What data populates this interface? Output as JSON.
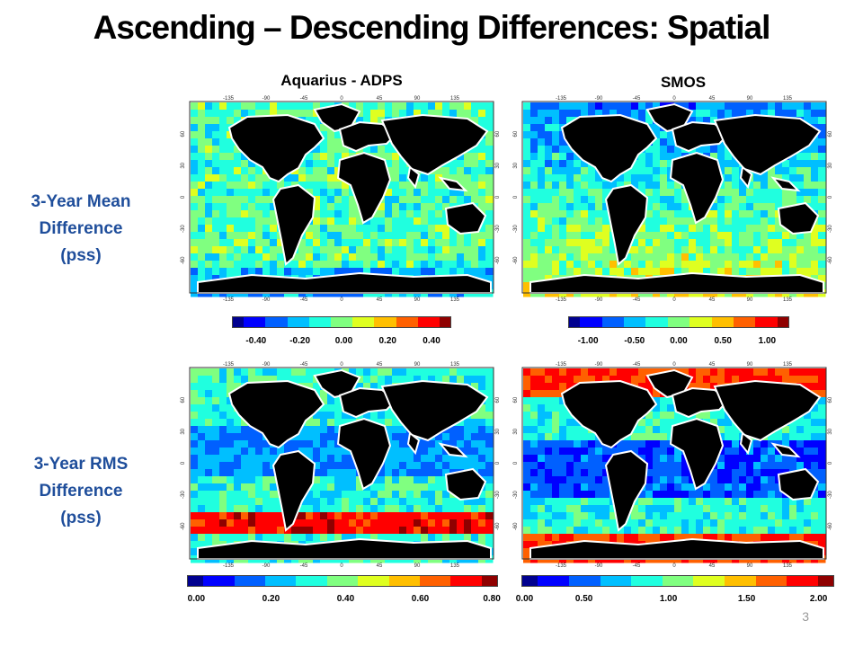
{
  "title": "Ascending – Descending Differences:  Spatial",
  "columns": [
    "Aquarius - ADPS",
    "SMOS"
  ],
  "rows": [
    {
      "label_lines": [
        "3-Year Mean",
        "Difference",
        "(pss)"
      ]
    },
    {
      "label_lines": [
        "3-Year RMS",
        "Difference",
        "(pss)"
      ]
    }
  ],
  "map_axis_labels": {
    "top": [
      "-135",
      "-90",
      "-45",
      "0",
      "45",
      "90",
      "135"
    ],
    "bottom": [
      "-135",
      "-90",
      "-45",
      "0",
      "45",
      "90",
      "135"
    ],
    "side": [
      "60",
      "30",
      "0",
      "-30",
      "-60"
    ]
  },
  "colorbars": [
    {
      "ticks": [
        "-0.40",
        "-0.20",
        "0.00",
        "0.20",
        "0.40"
      ]
    },
    {
      "ticks": [
        "-1.00",
        "-0.50",
        "0.00",
        "0.50",
        "1.00"
      ]
    },
    {
      "ticks": [
        "0.00",
        "0.20",
        "0.40",
        "0.60",
        "0.80"
      ]
    },
    {
      "ticks": [
        "0.00",
        "0.50",
        "1.00",
        "1.50",
        "2.00"
      ]
    }
  ],
  "page_number": "3"
}
